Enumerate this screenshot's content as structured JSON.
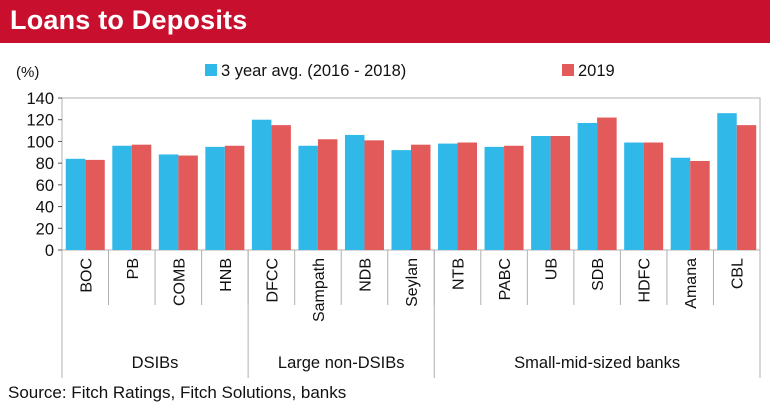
{
  "header": {
    "title": "Loans to Deposits"
  },
  "footer": {
    "source": "Source: Fitch Ratings, Fitch Solutions, banks"
  },
  "colors": {
    "header_bg": "#c8102e",
    "series_avg": "#2fb8e8",
    "series_2019": "#e35a5a",
    "plot_border": "#b0b0b0"
  },
  "chart_data": {
    "type": "bar",
    "title": "Loans to Deposits",
    "ylabel": "(%)",
    "xlabel": "",
    "ylim": [
      0,
      140
    ],
    "yticks": [
      0,
      20,
      40,
      60,
      80,
      100,
      120,
      140
    ],
    "grid": false,
    "legend": "top",
    "categories": [
      "BOC",
      "PB",
      "COMB",
      "HNB",
      "DFCC",
      "Sampath",
      "NDB",
      "Seylan",
      "NTB",
      "PABC",
      "UB",
      "SDB",
      "HDFC",
      "Amana",
      "CBL"
    ],
    "groups": [
      {
        "label": "DSIBs",
        "count": 4
      },
      {
        "label": "Large non-DSIBs",
        "count": 4
      },
      {
        "label": "Small-mid-sized banks",
        "count": 7
      }
    ],
    "series": [
      {
        "name": "3 year avg. (2016 - 2018)",
        "color": "#2fb8e8",
        "values": [
          84,
          96,
          88,
          95,
          120,
          96,
          106,
          92,
          98,
          95,
          105,
          117,
          99,
          85,
          126
        ]
      },
      {
        "name": "2019",
        "color": "#e35a5a",
        "values": [
          83,
          97,
          87,
          96,
          115,
          102,
          101,
          97,
          99,
          96,
          105,
          122,
          99,
          82,
          115
        ]
      }
    ]
  }
}
